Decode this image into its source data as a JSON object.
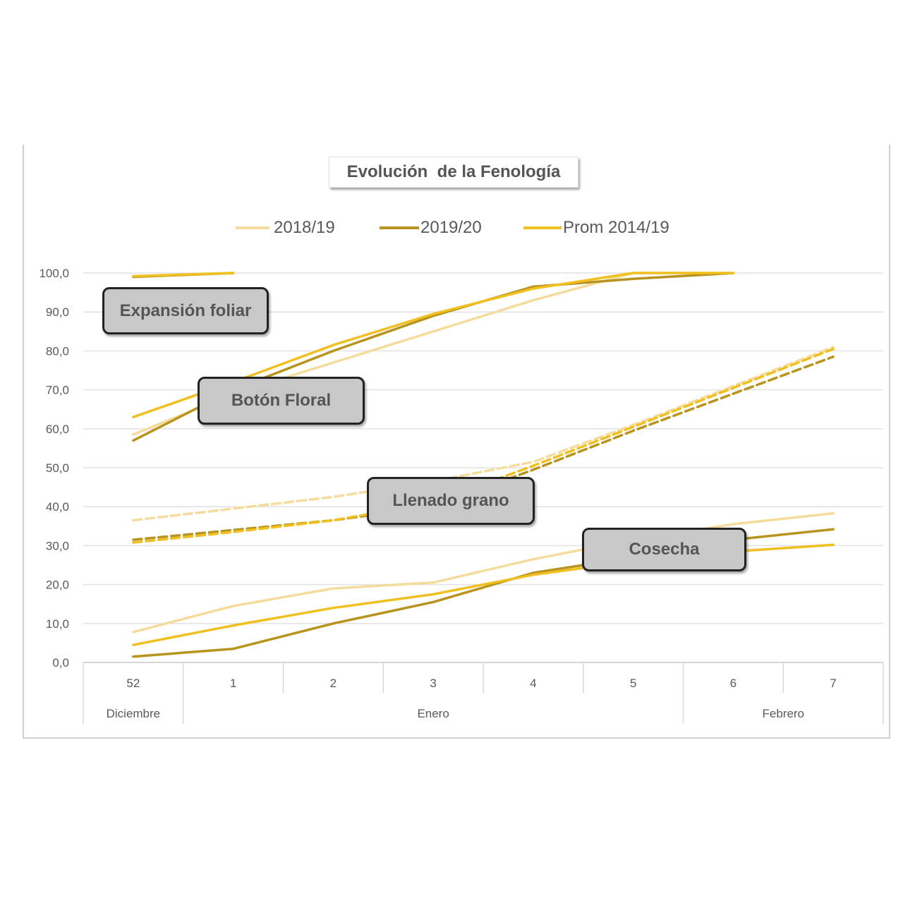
{
  "chart_data": {
    "type": "line",
    "title": "Evolución  de la Fenología",
    "xlabel": "",
    "ylabel": "",
    "categories": [
      "52",
      "1",
      "2",
      "3",
      "4",
      "5",
      "6",
      "7"
    ],
    "month_labels": [
      "Diciembre",
      "Enero",
      "Febrero"
    ],
    "ylim": [
      0,
      100
    ],
    "yticks": [
      "0,0",
      "10,0",
      "20,0",
      "30,0",
      "40,0",
      "50,0",
      "60,0",
      "70,0",
      "80,0",
      "90,0",
      "100,0"
    ],
    "grid": true,
    "legend_position": "top",
    "legend": [
      {
        "label": "2018/19",
        "color": "#f5dc9c"
      },
      {
        "label": "2019/20",
        "color": "#b8941f"
      },
      {
        "label": "Prom 2014/19",
        "color": "#f0c020"
      }
    ],
    "series": [
      {
        "season": "2018/19",
        "stage": "Expansión foliar",
        "dashed": false,
        "color": "#f5dc9c",
        "values": [
          null,
          100,
          null,
          null,
          null,
          null,
          null,
          null
        ]
      },
      {
        "season": "2019/20",
        "stage": "Expansión foliar",
        "dashed": false,
        "color": "#b8941f",
        "values": [
          99,
          100,
          null,
          null,
          null,
          null,
          null,
          null
        ]
      },
      {
        "season": "Prom 2014/19",
        "stage": "Expansión foliar",
        "dashed": false,
        "color": "#f0c020",
        "values": [
          99.2,
          100,
          null,
          null,
          null,
          null,
          null,
          null
        ]
      },
      {
        "season": "2018/19",
        "stage": "Botón Floral",
        "dashed": false,
        "color": "#f5dc9c",
        "values": [
          58.5,
          69,
          77,
          85,
          93,
          100,
          100,
          null
        ]
      },
      {
        "season": "2019/20",
        "stage": "Botón Floral",
        "dashed": false,
        "color": "#b8941f",
        "values": [
          57,
          70,
          80,
          89,
          96.5,
          98.5,
          100,
          null
        ]
      },
      {
        "season": "Prom 2014/19",
        "stage": "Botón Floral",
        "dashed": false,
        "color": "#f0c020",
        "values": [
          63,
          72,
          81.5,
          89.5,
          96,
          100,
          100,
          null
        ]
      },
      {
        "season": "2018/19",
        "stage": "Llenado grano",
        "dashed": true,
        "color": "#f5dc9c",
        "values": [
          36.5,
          39.5,
          42.5,
          46.5,
          51.5,
          61,
          71,
          81
        ]
      },
      {
        "season": "2019/20",
        "stage": "Llenado grano",
        "dashed": true,
        "color": "#b8941f",
        "values": [
          31.5,
          34,
          36.5,
          40,
          49.5,
          59.5,
          69,
          78.5
        ]
      },
      {
        "season": "Prom 2014/19",
        "stage": "Llenado grano",
        "dashed": true,
        "color": "#f0c020",
        "values": [
          30.8,
          33.5,
          36.5,
          41,
          50.5,
          60.5,
          70.5,
          80.5
        ]
      },
      {
        "season": "2018/19",
        "stage": "Cosecha",
        "dashed": false,
        "color": "#f5dc9c",
        "values": [
          7.8,
          14.5,
          19,
          20.5,
          26.5,
          31.5,
          35.5,
          38.3
        ]
      },
      {
        "season": "2019/20",
        "stage": "Cosecha",
        "dashed": false,
        "color": "#b8941f",
        "values": [
          1.5,
          3.5,
          10,
          15.5,
          23,
          27,
          31.5,
          34.2
        ]
      },
      {
        "season": "Prom 2014/19",
        "stage": "Cosecha",
        "dashed": false,
        "color": "#f0c020",
        "values": [
          4.5,
          9.5,
          14,
          17.5,
          22.5,
          26,
          28.5,
          30.2
        ]
      }
    ],
    "annotations": [
      "Expansión foliar",
      "Botón Floral",
      "Llenado grano",
      "Cosecha"
    ]
  }
}
